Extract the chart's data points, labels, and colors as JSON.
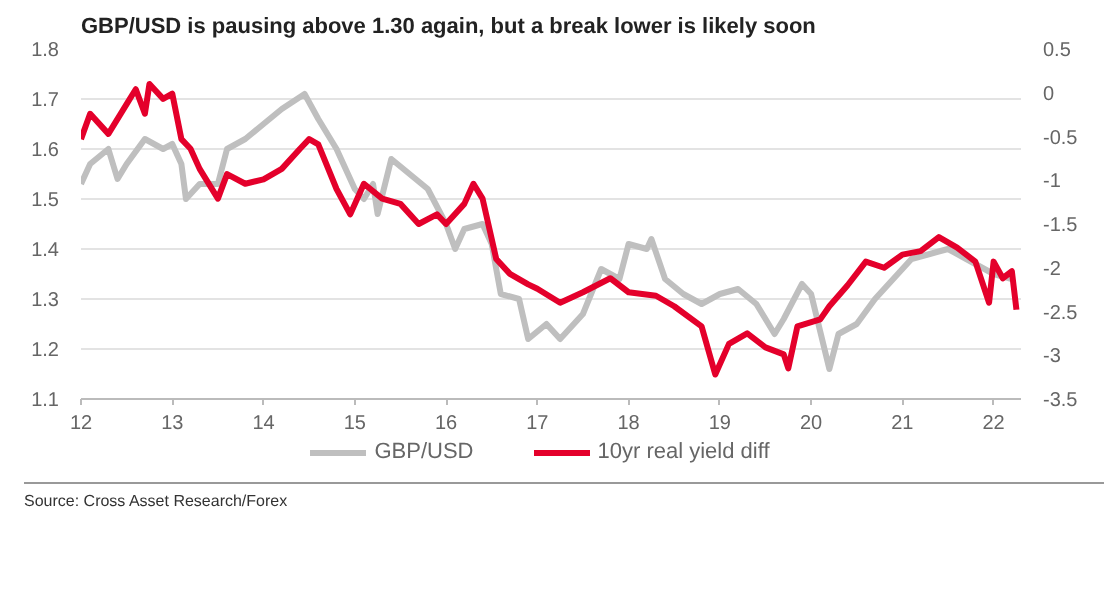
{
  "chart_data": {
    "type": "line",
    "title": "GBP/USD is pausing above 1.30 again, but a break lower is likely soon",
    "annotations": [
      "Source: Cross Asset Research/Forex"
    ],
    "xlim": [
      12,
      22.3
    ],
    "xticks": [
      12,
      13,
      14,
      15,
      16,
      17,
      18,
      19,
      20,
      21,
      22
    ],
    "ylim": [
      1.1,
      1.8
    ],
    "yticks": [
      1.1,
      1.2,
      1.3,
      1.4,
      1.5,
      1.6,
      1.7,
      1.8
    ],
    "y2lim": [
      -3.5,
      0.5
    ],
    "y2ticks": [
      -3.5,
      -3,
      -2.5,
      -2,
      -1.5,
      -1,
      -0.5,
      0,
      0.5
    ],
    "grid": "y",
    "legend": "bottom",
    "line_style": "solid",
    "series": [
      {
        "name": "GBP/USD",
        "color": "#bfbfbf",
        "x": [
          12.0,
          12.1,
          12.3,
          12.4,
          12.5,
          12.7,
          12.9,
          13.0,
          13.1,
          13.15,
          13.3,
          13.5,
          13.6,
          13.8,
          14.0,
          14.2,
          14.45,
          14.6,
          14.8,
          15.0,
          15.1,
          15.2,
          15.25,
          15.4,
          15.6,
          15.8,
          16.0,
          16.1,
          16.2,
          16.4,
          16.5,
          16.6,
          16.8,
          16.9,
          17.1,
          17.25,
          17.5,
          17.7,
          17.9,
          18.0,
          18.2,
          18.25,
          18.4,
          18.6,
          18.8,
          19.0,
          19.2,
          19.4,
          19.6,
          19.7,
          19.9,
          20.0,
          20.2,
          20.3,
          20.5,
          20.7,
          20.9,
          21.1,
          21.3,
          21.5,
          21.7,
          22.0,
          22.2
        ],
        "values": [
          1.53,
          1.57,
          1.6,
          1.54,
          1.57,
          1.62,
          1.6,
          1.61,
          1.57,
          1.5,
          1.53,
          1.53,
          1.6,
          1.62,
          1.65,
          1.68,
          1.71,
          1.66,
          1.6,
          1.52,
          1.5,
          1.53,
          1.47,
          1.58,
          1.55,
          1.52,
          1.45,
          1.4,
          1.44,
          1.45,
          1.41,
          1.31,
          1.3,
          1.22,
          1.25,
          1.22,
          1.27,
          1.36,
          1.34,
          1.41,
          1.4,
          1.42,
          1.34,
          1.31,
          1.29,
          1.31,
          1.32,
          1.29,
          1.23,
          1.26,
          1.33,
          1.31,
          1.16,
          1.23,
          1.25,
          1.3,
          1.34,
          1.38,
          1.39,
          1.4,
          1.38,
          1.35,
          1.34
        ]
      },
      {
        "name": "10yr real yield diff",
        "color": "#e4002b",
        "axis": "y2",
        "x": [
          12.0,
          12.1,
          12.3,
          12.5,
          12.6,
          12.7,
          12.75,
          12.9,
          13.0,
          13.1,
          13.2,
          13.3,
          13.5,
          13.6,
          13.8,
          14.0,
          14.2,
          14.4,
          14.5,
          14.6,
          14.8,
          14.95,
          15.1,
          15.3,
          15.5,
          15.7,
          15.9,
          16.0,
          16.2,
          16.3,
          16.4,
          16.55,
          16.7,
          16.9,
          17.0,
          17.25,
          17.5,
          17.8,
          18.0,
          18.3,
          18.5,
          18.8,
          18.95,
          19.1,
          19.3,
          19.5,
          19.7,
          19.75,
          19.85,
          20.1,
          20.2,
          20.4,
          20.6,
          20.8,
          21.0,
          21.2,
          21.4,
          21.6,
          21.8,
          21.95,
          22.0,
          22.1,
          22.2,
          22.25
        ],
        "values": [
          -0.53,
          -0.24,
          -0.47,
          -0.13,
          0.04,
          -0.24,
          0.1,
          -0.07,
          -0.01,
          -0.53,
          -0.64,
          -0.87,
          -1.21,
          -0.93,
          -1.04,
          -0.99,
          -0.87,
          -0.64,
          -0.53,
          -0.59,
          -1.1,
          -1.39,
          -1.04,
          -1.21,
          -1.27,
          -1.5,
          -1.39,
          -1.5,
          -1.27,
          -1.04,
          -1.21,
          -1.9,
          -2.07,
          -2.19,
          -2.24,
          -2.4,
          -2.28,
          -2.12,
          -2.28,
          -2.32,
          -2.44,
          -2.67,
          -3.22,
          -2.87,
          -2.75,
          -2.91,
          -2.99,
          -3.15,
          -2.67,
          -2.59,
          -2.44,
          -2.2,
          -1.93,
          -2.0,
          -1.85,
          -1.81,
          -1.65,
          -1.77,
          -1.93,
          -2.4,
          -1.93,
          -2.12,
          -2.04,
          -2.48
        ]
      }
    ]
  }
}
